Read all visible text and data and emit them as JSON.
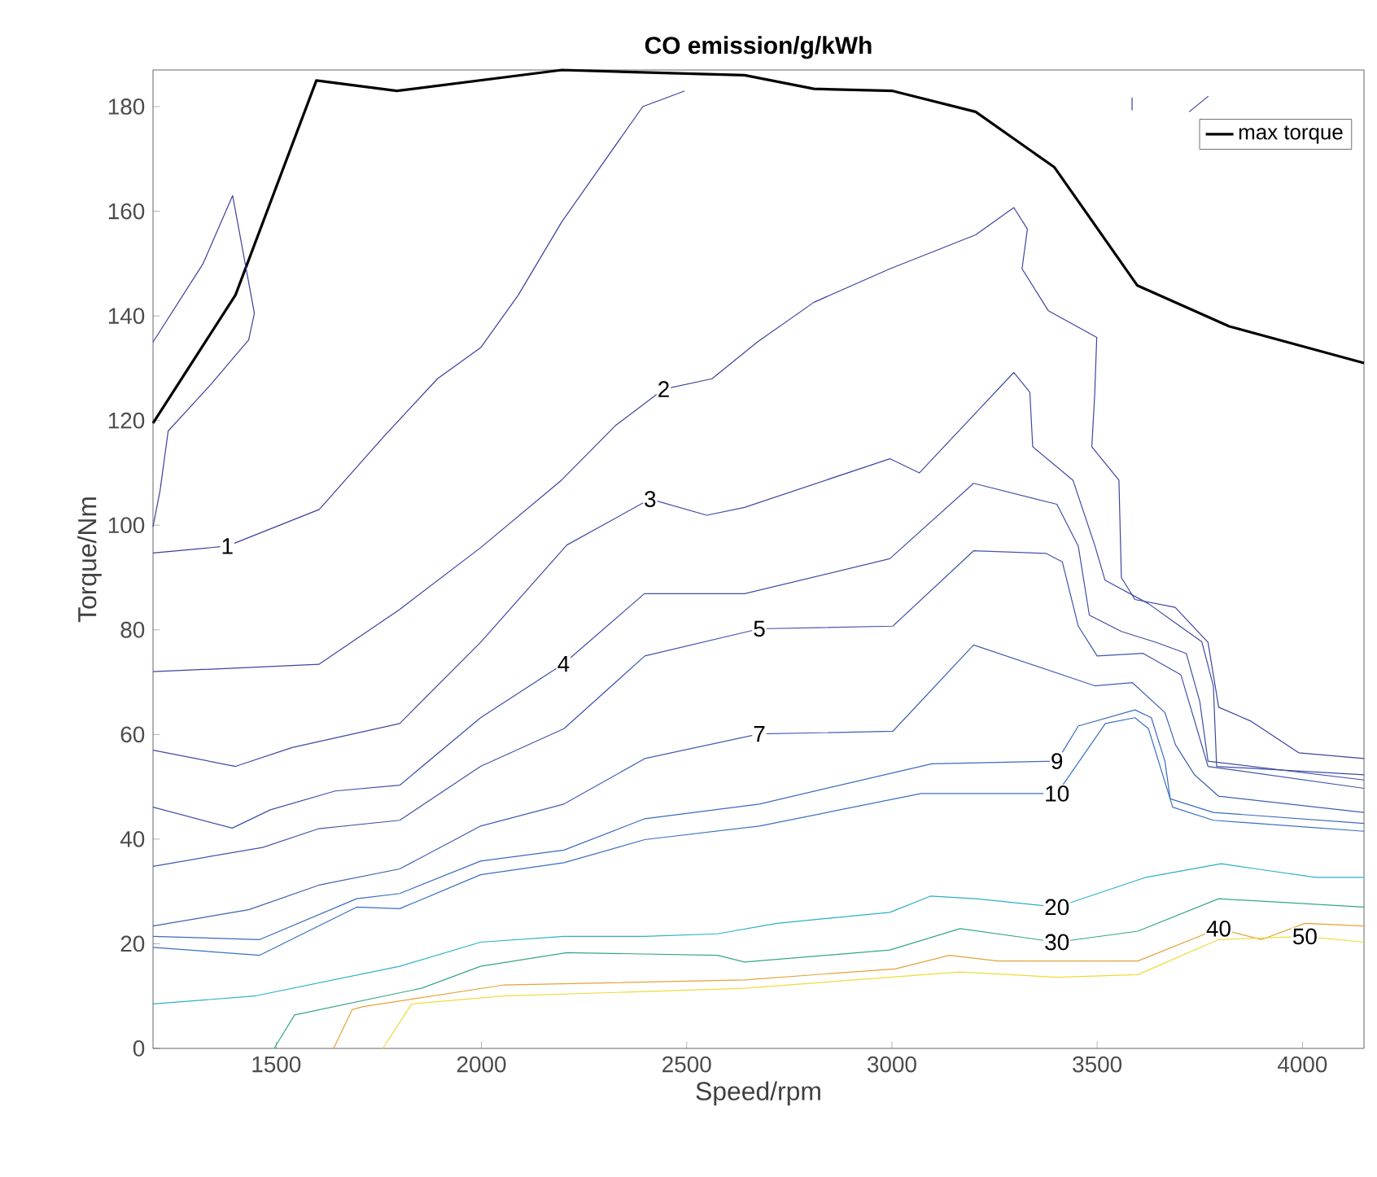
{
  "chart_data": {
    "type": "line",
    "title": "CO emission/g/kWh",
    "xlabel": "Speed/rpm",
    "ylabel": "Torque/Nm",
    "xlim": [
      1200,
      4150
    ],
    "ylim": [
      0,
      187
    ],
    "xticks": [
      1500,
      2000,
      2500,
      3000,
      3500,
      4000
    ],
    "yticks": [
      0,
      20,
      40,
      60,
      80,
      100,
      120,
      140,
      160,
      180
    ],
    "legend": "top right",
    "grid": false,
    "marker": "none",
    "line_style": "solid",
    "series": [
      {
        "name": "max torque",
        "color": "#000000",
        "x": [
          1200,
          1401,
          1598,
          1794,
          2196,
          2641,
          2810,
          3002,
          3204,
          3396,
          3598,
          3822,
          4150
        ],
        "values": [
          119.5,
          144,
          185,
          183,
          187,
          186,
          183.4,
          183,
          179,
          168.4,
          145.8,
          138,
          131
        ]
      },
      {
        "name": "1",
        "color": "#3b3f9c",
        "x": [
          1200,
          1381,
          1605,
          1763,
          1893,
          1999,
          2090,
          2196,
          2393,
          2495,
          null,
          1200,
          1322,
          1394,
          1447,
          1433,
          1342,
          1237,
          1217,
          1200,
          null,
          3585,
          3585,
          null,
          3724,
          3771
        ],
        "values": [
          94.7,
          96,
          103,
          117,
          128,
          134,
          144,
          158,
          180,
          183,
          null,
          135,
          150,
          163,
          140.5,
          135.4,
          127,
          118,
          106.5,
          99.7,
          null,
          181.7,
          179.3,
          null,
          179,
          182
        ]
      },
      {
        "name": "2",
        "color": "#3d449f",
        "x": [
          1200,
          1604,
          1801,
          1998,
          2195,
          2326,
          2444,
          2562,
          2672,
          2810,
          2995,
          3204,
          3297,
          3330,
          3317,
          3381,
          3499,
          3494,
          3487,
          3553,
          3559,
          3592,
          3690,
          3770,
          3796,
          3873,
          3991,
          4150
        ],
        "values": [
          72,
          73.4,
          83.9,
          95.7,
          108.6,
          119,
          126,
          128,
          135,
          142.6,
          149,
          155.5,
          160.7,
          156.6,
          149,
          141,
          135.9,
          125,
          115,
          108.6,
          90,
          85.8,
          84.3,
          77.6,
          65.2,
          62.6,
          56.5,
          55.4
        ]
      },
      {
        "name": "3",
        "color": "#3e4aa3",
        "x": [
          1200,
          1401,
          1539,
          1801,
          1998,
          2208,
          2411,
          2549,
          2641,
          2995,
          3067,
          3297,
          3336,
          3343,
          3441,
          3494,
          3519,
          3625,
          3755,
          3783,
          3791,
          4150
        ],
        "values": [
          57,
          53.9,
          57.5,
          62.1,
          77.6,
          96.2,
          105,
          101.9,
          103.4,
          112.7,
          110,
          129.2,
          125.4,
          115,
          108.6,
          96.2,
          89.5,
          85,
          77.7,
          69.3,
          53.9,
          52.3
        ]
      },
      {
        "name": "4",
        "color": "#3f4fa6",
        "x": [
          1200,
          1393,
          1486,
          1644,
          1801,
          1998,
          2200,
          2397,
          2641,
          2995,
          3199,
          3402,
          3454,
          3481,
          3559,
          3644,
          3717,
          3750,
          3770,
          4150
        ],
        "values": [
          46.1,
          42.1,
          45.6,
          49.2,
          50.3,
          63.2,
          73.5,
          86.9,
          86.9,
          93.6,
          108,
          104,
          96,
          82.8,
          79.7,
          77.6,
          75.5,
          66.3,
          54.9,
          51.3
        ]
      },
      {
        "name": "5",
        "color": "#4054aa",
        "x": [
          1200,
          1467,
          1604,
          1801,
          1998,
          2201,
          2398,
          2677,
          3002,
          3199,
          3376,
          3415,
          3454,
          3500,
          3612,
          3704,
          3743,
          3770,
          4150
        ],
        "values": [
          34.8,
          38.4,
          42,
          43.6,
          53.9,
          61.1,
          75,
          80.2,
          80.7,
          95.1,
          94.6,
          93,
          80.7,
          75,
          75.5,
          71.4,
          61.1,
          53.9,
          49.7
        ]
      },
      {
        "name": "7",
        "color": "#3f5fb2",
        "x": [
          1200,
          1433,
          1604,
          1801,
          1998,
          2201,
          2398,
          2677,
          3002,
          3199,
          3494,
          3586,
          3665,
          3691,
          3737,
          3796,
          4150
        ],
        "values": [
          23.4,
          26.5,
          31.2,
          34.3,
          42.5,
          46.7,
          55.4,
          60.1,
          60.6,
          77.1,
          69.3,
          69.9,
          64.2,
          58,
          52.3,
          48.2,
          45.1
        ]
      },
      {
        "name": "9",
        "color": "#3b6abd",
        "x": [
          1200,
          1460,
          1696,
          1801,
          1998,
          2201,
          2398,
          2677,
          3097,
          3402,
          3454,
          3592,
          3632,
          3665,
          3678,
          3783,
          4150
        ],
        "values": [
          21.4,
          20.8,
          28.6,
          29.6,
          35.8,
          37.9,
          43.9,
          46.7,
          54.4,
          54.9,
          61.6,
          64.7,
          63.2,
          54.9,
          47.7,
          45.1,
          43
        ]
      },
      {
        "name": "10",
        "color": "#3870c2",
        "x": [
          1200,
          1460,
          1696,
          1801,
          1998,
          2201,
          2398,
          2677,
          3071,
          3402,
          3520,
          3592,
          3625,
          3684,
          3783,
          4150
        ],
        "values": [
          19.3,
          17.8,
          27,
          26.7,
          33.2,
          35.5,
          39.9,
          42.5,
          48.7,
          48.7,
          62.1,
          63.2,
          61.1,
          46.1,
          43.6,
          41.5
        ]
      },
      {
        "name": "20",
        "color": "#2bb0c8",
        "x": [
          1200,
          1447,
          1801,
          1998,
          2201,
          2398,
          2575,
          2720,
          2995,
          3094,
          3205,
          3402,
          3619,
          3802,
          3888,
          4032,
          4150
        ],
        "values": [
          8.5,
          10,
          15.7,
          20.3,
          21.4,
          21.4,
          21.9,
          23.9,
          26,
          29.1,
          28.6,
          27,
          32.7,
          35.3,
          34.3,
          32.7,
          32.7
        ]
      },
      {
        "name": "30",
        "color": "#36a58c",
        "x": [
          1495,
          1545,
          1854,
          1998,
          2208,
          2575,
          2641,
          2995,
          3166,
          3402,
          3599,
          3796,
          4150
        ],
        "values": [
          0,
          6.4,
          11.5,
          15.7,
          18.3,
          17.8,
          16.5,
          18.8,
          22.9,
          20.3,
          22.4,
          28.6,
          27
        ]
      },
      {
        "name": "40",
        "color": "#e3a33b",
        "x": [
          1640,
          1685,
          1712,
          2053,
          2641,
          3008,
          3140,
          3258,
          3599,
          3796,
          3901,
          4006,
          4150
        ],
        "values": [
          0,
          7.4,
          8,
          12.1,
          13.1,
          15.2,
          17.8,
          16.7,
          16.7,
          22.9,
          20.8,
          23.9,
          23.4
        ]
      },
      {
        "name": "50",
        "color": "#ecdc3a",
        "x": [
          1760,
          1830,
          2053,
          2641,
          3166,
          3402,
          3599,
          3796,
          4006,
          4150
        ],
        "values": [
          0,
          8.5,
          10,
          11.5,
          14.6,
          13.6,
          14.1,
          20.8,
          21.4,
          20.3
        ]
      }
    ]
  }
}
